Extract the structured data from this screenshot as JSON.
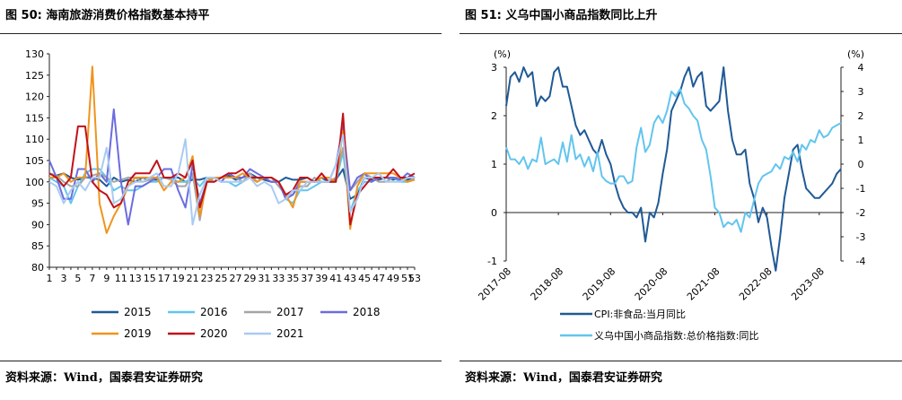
{
  "left_panel": {
    "title": "图 50: 海南旅游消费价格指数基本持平",
    "source": "资料来源：Wind，国泰君安证券研究"
  },
  "right_panel": {
    "title": "图 51: 义乌中国小商品指数同比上升",
    "source": "资料来源：Wind，国泰君安证券研究"
  },
  "chart_data": [
    {
      "type": "line",
      "ylim": [
        80,
        130
      ],
      "yticks": [
        80,
        85,
        90,
        95,
        100,
        105,
        110,
        115,
        120,
        125,
        130
      ],
      "x_tick_labels": [
        "1",
        "3",
        "5",
        "7",
        "9",
        "11",
        "13",
        "15",
        "17",
        "19",
        "21",
        "23",
        "25",
        "27",
        "29",
        "31",
        "33",
        "35",
        "37",
        "39",
        "41",
        "43",
        "45",
        "47",
        "49",
        "51",
        "53"
      ],
      "grid": false,
      "legend_position": "bottom",
      "series": [
        {
          "name": "2015",
          "color": "#1f5a96",
          "values": [
            102,
            101.5,
            102,
            101,
            100.5,
            101,
            101,
            100.5,
            99,
            101,
            100,
            100.5,
            100,
            101,
            100.5,
            100.5,
            101,
            101,
            101,
            100,
            100.5,
            100.5,
            101,
            100,
            101,
            101.5,
            100.5,
            101,
            102,
            101,
            100.5,
            100,
            100,
            101,
            100.5,
            100.5,
            101,
            100,
            101,
            100,
            100.5,
            103,
            96,
            97,
            101,
            100.5,
            100.5,
            101,
            100.5,
            101,
            100.5,
            101
          ]
        },
        {
          "name": "2016",
          "color": "#62c5ee",
          "values": [
            101,
            100,
            99,
            95,
            99,
            102,
            103,
            103,
            101,
            98,
            99,
            98,
            98,
            99,
            100,
            100,
            101,
            101,
            100,
            100,
            101,
            99,
            101,
            101,
            100,
            100,
            99,
            100,
            101,
            100,
            101,
            101,
            100,
            96,
            95,
            98,
            98,
            99,
            100,
            100,
            100,
            107,
            93,
            98,
            100,
            100,
            101,
            101,
            101,
            100,
            100,
            100.5
          ]
        },
        {
          "name": "2017",
          "color": "#a5a5a5",
          "values": [
            102,
            101.5,
            100,
            99,
            99,
            101,
            101.5,
            102,
            101,
            100,
            100.5,
            101,
            101,
            100,
            100.5,
            101,
            101,
            100.5,
            99,
            99,
            102,
            91,
            101,
            100,
            101,
            102,
            101,
            100,
            102,
            100,
            101,
            101,
            99,
            97,
            97,
            99,
            99,
            101,
            100,
            100,
            101,
            108,
            98,
            100,
            102,
            101,
            100,
            100,
            101,
            101,
            100,
            101
          ]
        },
        {
          "name": "2018",
          "color": "#6b6ce0",
          "values": [
            105,
            101,
            96,
            96,
            103,
            103,
            100,
            102,
            100,
            117,
            100,
            90,
            99,
            99,
            100,
            101,
            103,
            103,
            98,
            94,
            104,
            95,
            100,
            101,
            100,
            102,
            101,
            101,
            103,
            102,
            101,
            100,
            100,
            96,
            97,
            100,
            100,
            100,
            100,
            100,
            104,
            113,
            98,
            101,
            102,
            100,
            101,
            101,
            101,
            100.5,
            102,
            101
          ]
        },
        {
          "name": "2019",
          "color": "#f0941e",
          "values": [
            101,
            101,
            102,
            100,
            101,
            101,
            127,
            95,
            88,
            92,
            95,
            99,
            101,
            101,
            101,
            101,
            98,
            100,
            100,
            101,
            106,
            92,
            100,
            101,
            101,
            101,
            101,
            102,
            101,
            100,
            101,
            101,
            100,
            97,
            94,
            100,
            100,
            100,
            101,
            101,
            100,
            112,
            89,
            99,
            102,
            102,
            102,
            102,
            102,
            101,
            100,
            100.5
          ]
        },
        {
          "name": "2020",
          "color": "#c0121a",
          "values": [
            102,
            101,
            99,
            101,
            113,
            113,
            100,
            98,
            97,
            94,
            95,
            100,
            102,
            102,
            102,
            105,
            101,
            101,
            102,
            101,
            105,
            94,
            100,
            100,
            101,
            102,
            102,
            103,
            101,
            101,
            101,
            101,
            100,
            97,
            98,
            101,
            101,
            100,
            102,
            100,
            100,
            116,
            90,
            97,
            99,
            101,
            101,
            101,
            103,
            101,
            101,
            102
          ]
        },
        {
          "name": "2021",
          "color": "#a9cbf2",
          "values": [
            100,
            99,
            95,
            98,
            100,
            98,
            101,
            101,
            108,
            95,
            96,
            99,
            100,
            100,
            101,
            102,
            99,
            99,
            102,
            110,
            90,
            97,
            101,
            101,
            100,
            100,
            100,
            100,
            101,
            99,
            100,
            99,
            95,
            96,
            98,
            98,
            100,
            100,
            100,
            100,
            104,
            111,
            93,
            96,
            101,
            101,
            102,
            100,
            100,
            100,
            101,
            101
          ]
        }
      ]
    },
    {
      "type": "line",
      "left_ylim": [
        -1,
        3
      ],
      "left_ylabel": "(%)",
      "left_yticks": [
        -1,
        0,
        1,
        2,
        3
      ],
      "right_ylim": [
        -4,
        4
      ],
      "right_ylabel": "(%)",
      "right_yticks": [
        -4,
        -3,
        -2,
        -1,
        0,
        1,
        2,
        3,
        4
      ],
      "x_tick_labels": [
        "2017-08",
        "2018-08",
        "2019-08",
        "2020-08",
        "2021-08",
        "2022-08",
        "2023-08"
      ],
      "grid": false,
      "legend_position": "bottom",
      "series": [
        {
          "name": "CPI:非食品:当月同比",
          "axis": "left",
          "color": "#1f5a96",
          "x": [
            0,
            1,
            2,
            3,
            4,
            5,
            6,
            7,
            8,
            9,
            10,
            11,
            12,
            13,
            14,
            15,
            16,
            17,
            18,
            19,
            20,
            21,
            22,
            23,
            24,
            25,
            26,
            27,
            28,
            29,
            30,
            31,
            32,
            33,
            34,
            35,
            36,
            37,
            38,
            39,
            40,
            41,
            42,
            43,
            44,
            45,
            46,
            47,
            48,
            49,
            50,
            51,
            52,
            53,
            54,
            55,
            56,
            57,
            58,
            59,
            60,
            61,
            62,
            63,
            64,
            65,
            66,
            67,
            68,
            69,
            70,
            71,
            72,
            73,
            74,
            75,
            76,
            77
          ],
          "y": [
            2.2,
            2.8,
            2.9,
            2.7,
            3.0,
            2.8,
            2.9,
            2.2,
            2.4,
            2.3,
            2.4,
            2.9,
            3.0,
            2.6,
            2.6,
            2.2,
            1.8,
            1.6,
            1.7,
            1.5,
            1.3,
            1.2,
            1.5,
            1.2,
            1.0,
            0.6,
            0.3,
            0.1,
            0.0,
            0.0,
            -0.1,
            0.1,
            -0.6,
            0.0,
            -0.1,
            0.2,
            0.8,
            1.3,
            2.1,
            2.3,
            2.5,
            2.8,
            3.0,
            2.6,
            2.8,
            2.9,
            2.2,
            2.1,
            2.2,
            2.3,
            3.0,
            2.1,
            1.5,
            1.2,
            1.2,
            1.3,
            0.6,
            0.3,
            -0.2,
            0.1,
            -0.1,
            -0.7,
            -1.2,
            -0.5,
            0.3,
            0.8,
            1.3,
            1.4,
            0.9,
            0.5,
            0.4,
            0.3,
            0.3,
            0.4,
            0.5,
            0.6,
            0.8,
            0.9
          ]
        },
        {
          "name": "义乌中国小商品指数:总价格指数:同比",
          "axis": "right",
          "color": "#62c5ee",
          "x": [
            0,
            1,
            2,
            3,
            4,
            5,
            6,
            7,
            8,
            9,
            10,
            11,
            12,
            13,
            14,
            15,
            16,
            17,
            18,
            19,
            20,
            21,
            22,
            23,
            24,
            25,
            26,
            27,
            28,
            29,
            30,
            31,
            32,
            33,
            34,
            35,
            36,
            37,
            38,
            39,
            40,
            41,
            42,
            43,
            44,
            45,
            46,
            47,
            48,
            49,
            50,
            51,
            52,
            53,
            54,
            55,
            56,
            57,
            58,
            59,
            60,
            61,
            62,
            63,
            64,
            65,
            66,
            67,
            68,
            69,
            70,
            71,
            72,
            73,
            74,
            75,
            76,
            77
          ],
          "y": [
            0.7,
            0.2,
            0.2,
            0.0,
            0.3,
            -0.2,
            0.2,
            0.1,
            1.1,
            0.0,
            0.1,
            0.2,
            0.0,
            0.9,
            0.1,
            1.2,
            0.2,
            0.4,
            -0.1,
            0.3,
            -0.3,
            0.5,
            -0.5,
            -0.7,
            -0.8,
            -0.8,
            -0.5,
            -0.5,
            -0.8,
            -0.7,
            0.7,
            1.5,
            0.5,
            0.8,
            1.7,
            2.0,
            1.7,
            2.2,
            3.0,
            2.8,
            3.1,
            2.5,
            2.3,
            2.0,
            1.8,
            1.0,
            0.6,
            -0.5,
            -1.8,
            -2.0,
            -2.6,
            -2.4,
            -2.5,
            -2.3,
            -2.8,
            -2.0,
            -2.2,
            -1.5,
            -0.8,
            -0.5,
            -0.4,
            -0.3,
            0.0,
            -0.2,
            0.3,
            0.2,
            0.5,
            0.1,
            0.8,
            0.6,
            1.0,
            0.9,
            1.4,
            1.1,
            1.2,
            1.5,
            1.6,
            1.7
          ]
        }
      ]
    }
  ]
}
